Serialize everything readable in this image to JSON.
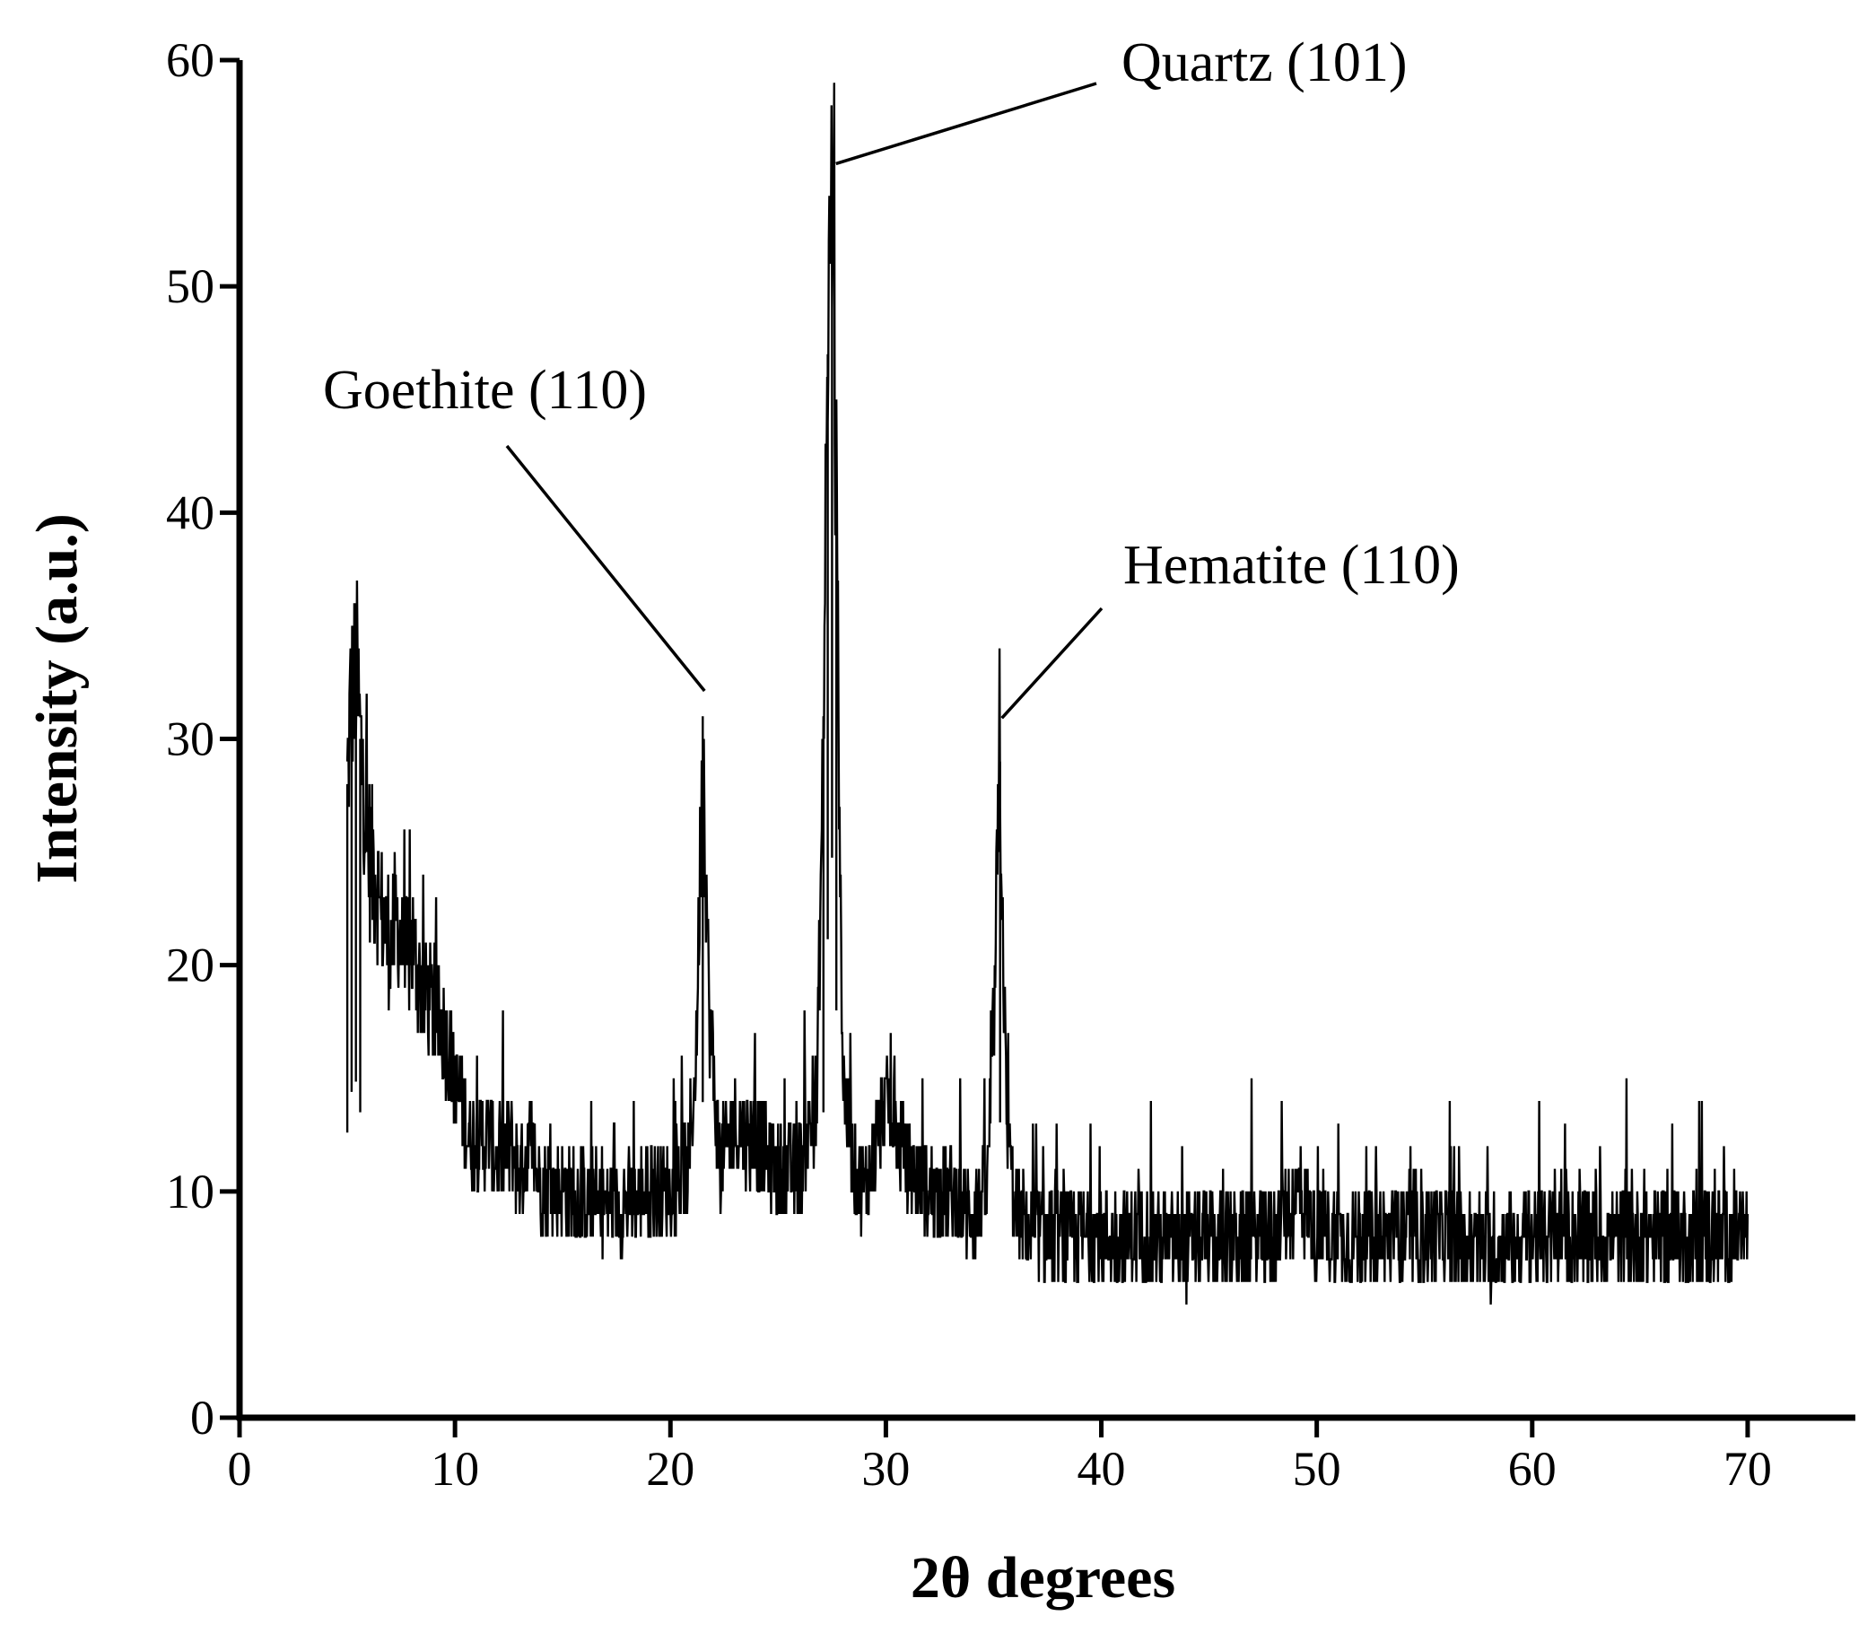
{
  "chart_data": {
    "type": "line",
    "title": "",
    "xlabel": "2θ degrees",
    "ylabel": "Intensity (a.u.)",
    "xlim": [
      0,
      75
    ],
    "ylim": [
      0,
      60
    ],
    "xticks": [
      0,
      10,
      20,
      30,
      40,
      50,
      60,
      70
    ],
    "yticks": [
      0,
      10,
      20,
      30,
      40,
      50,
      60
    ],
    "grid": false,
    "legend": "none",
    "line_color": "#000000",
    "series": [
      {
        "x": [
          5.0,
          5.2,
          5.4,
          5.6,
          5.8,
          6.0,
          6.3,
          6.6,
          7.0,
          7.3,
          7.7,
          8.0,
          8.5,
          9.0,
          9.5,
          10.0,
          10.5,
          11.0,
          11.5,
          12.0,
          12.5,
          13.0,
          13.5,
          14.0,
          15.0,
          16.0,
          17.0,
          18.0,
          19.0,
          20.0,
          20.8,
          21.2,
          21.5,
          21.8,
          22.3,
          23.0,
          24.0,
          25.0,
          26.0,
          26.8,
          27.1,
          27.3,
          27.5,
          27.7,
          28.0,
          28.5,
          29.0,
          30.0,
          31.0,
          32.0,
          33.0,
          34.0,
          34.7,
          35.0,
          35.3,
          35.6,
          36.0,
          37.0,
          38.0,
          40.0,
          42.0,
          44.0,
          46.0,
          48.0,
          49.2,
          50.0,
          52.0,
          54.0,
          56.0,
          58.0,
          60.0,
          62.0,
          64.0,
          66.0,
          68.0,
          70.0
        ],
        "y": [
          28,
          32,
          33,
          30,
          27,
          25,
          24,
          22,
          21,
          22,
          20,
          21,
          19,
          18,
          17,
          15,
          13,
          12,
          12.5,
          11.5,
          12,
          11,
          12,
          10.5,
          10,
          9.5,
          9.5,
          9.5,
          10,
          10,
          11,
          16,
          31,
          18,
          11,
          13,
          12,
          11,
          11,
          14,
          30,
          47,
          55,
          40,
          15,
          11,
          10,
          14,
          11,
          10,
          10,
          9,
          10,
          17,
          29,
          13,
          9,
          8,
          8,
          8,
          8,
          7.5,
          8,
          8,
          10,
          8,
          8,
          8,
          8,
          7.5,
          8,
          8,
          8,
          8,
          8,
          8
        ]
      }
    ],
    "annotations": [
      {
        "text": "Quartz (101)",
        "x": 27.6,
        "y": 55.5
      },
      {
        "text": "Goethite (110)",
        "x": 21.5,
        "y": 32.2
      },
      {
        "text": "Hematite (110)",
        "x": 35.3,
        "y": 31.0
      }
    ]
  }
}
